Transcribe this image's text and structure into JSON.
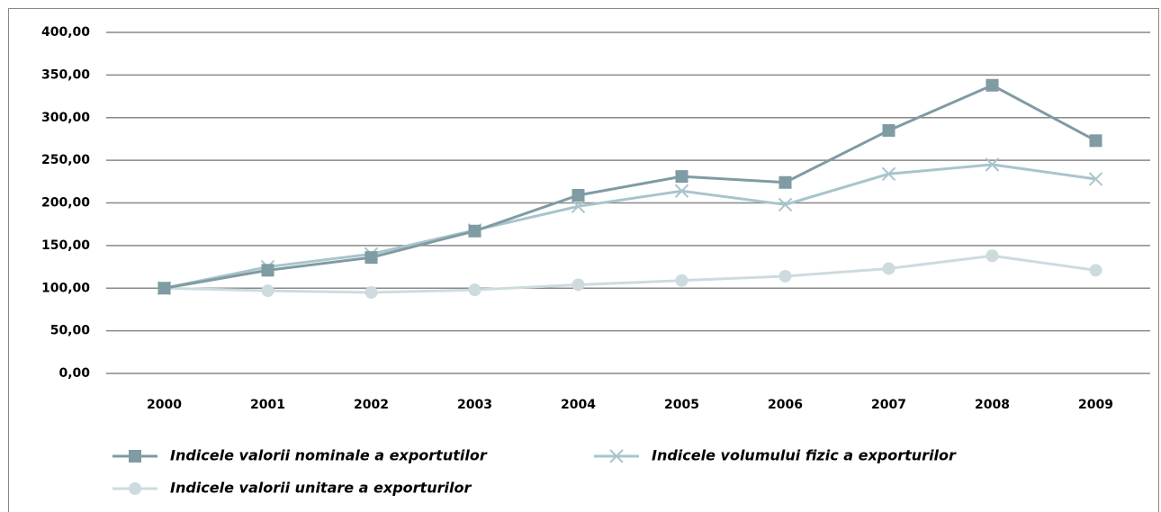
{
  "chart_data": {
    "type": "line",
    "categories": [
      "2000",
      "2001",
      "2002",
      "2003",
      "2004",
      "2005",
      "2006",
      "2007",
      "2008",
      "2009"
    ],
    "series": [
      {
        "name": "Indicele valorii nominale a exportutilor",
        "color": "#7f9ba3",
        "marker": "square",
        "values": [
          100,
          121,
          136,
          167,
          209,
          231,
          224,
          285,
          338,
          273
        ]
      },
      {
        "name": "Indicele volumului fizic a exporturilor",
        "color": "#a9c4cc",
        "marker": "x",
        "values": [
          100,
          125,
          140,
          168,
          196,
          214,
          198,
          234,
          245,
          228
        ]
      },
      {
        "name": "Indicele valorii unitare a exporturilor",
        "color": "#cddbdf",
        "marker": "circle",
        "values": [
          100,
          97,
          95,
          98,
          104,
          109,
          114,
          123,
          138,
          121
        ]
      }
    ],
    "ylim": [
      0,
      400
    ],
    "yticks": [
      {
        "value": 0,
        "label": "0,00"
      },
      {
        "value": 50,
        "label": "50,00"
      },
      {
        "value": 100,
        "label": "100,00"
      },
      {
        "value": 150,
        "label": "150,00"
      },
      {
        "value": 200,
        "label": "200,00"
      },
      {
        "value": 250,
        "label": "250,00"
      },
      {
        "value": 300,
        "label": "300,00"
      },
      {
        "value": 350,
        "label": "350,00"
      },
      {
        "value": 400,
        "label": "400,00"
      }
    ],
    "grid": true
  }
}
